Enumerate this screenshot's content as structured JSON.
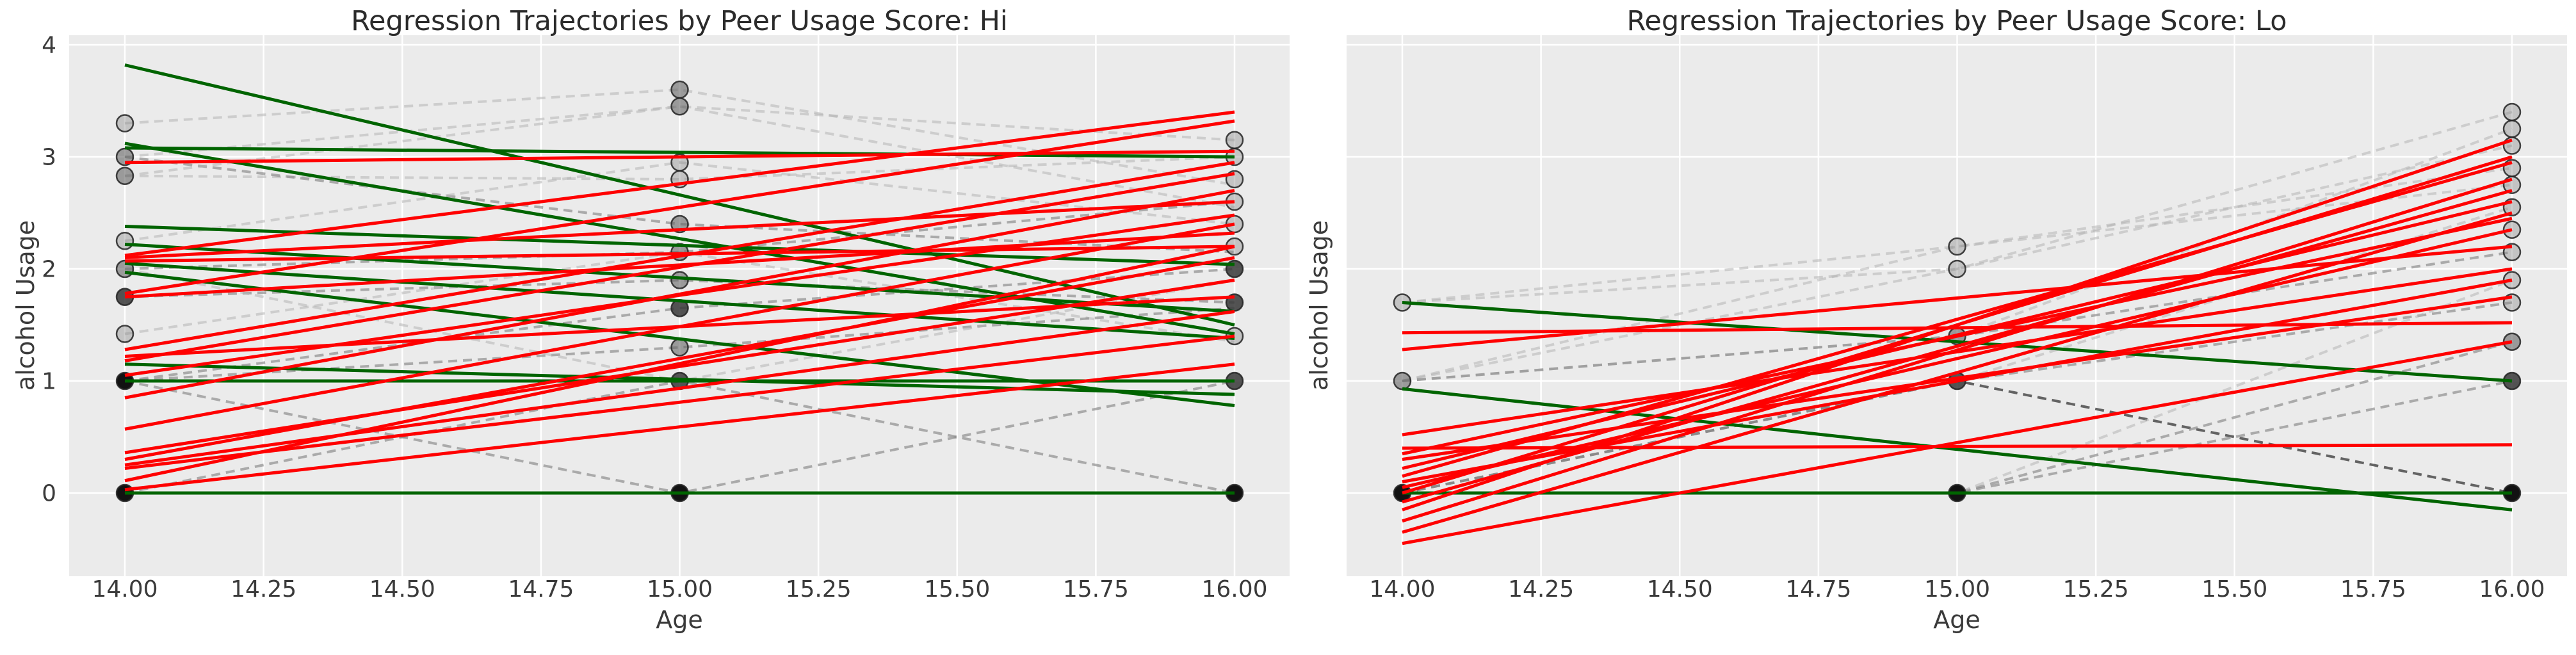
{
  "figure": {
    "background": "#ffffff"
  },
  "style": {
    "axes_background": "#ebebeb",
    "grid_color": "#ffffff",
    "tick_text_color": "#3a3a3a",
    "title_color": "#2b2b2b",
    "increase_line_color": "#ff0000",
    "decrease_line_color": "#006400",
    "marker_edge_color": "rgba(35,35,35,0.85)",
    "trajectory_shades": {
      "light": "rgba(180,180,180,0.55)",
      "medium": "rgba(135,135,135,0.65)",
      "dark": "rgba(75,75,75,0.85)"
    },
    "marker_shades": {
      "light": "rgba(135,135,135,0.40)",
      "medium": "rgba(100,100,100,0.60)",
      "dark": "rgba(55,55,55,0.85)",
      "black": "rgba(10,10,10,0.97)"
    }
  },
  "chart_data": [
    {
      "type": "line",
      "key": "hi",
      "title": "Regression Trajectories by Peer Usage Score: Hi",
      "xlabel": "Age",
      "ylabel": "alcohol Usage",
      "xlim": [
        13.9,
        16.1
      ],
      "ylim": [
        -0.74,
        4.09
      ],
      "x_tick_values": [
        14.0,
        14.25,
        14.5,
        14.75,
        15.0,
        15.25,
        15.5,
        15.75,
        16.0
      ],
      "x_ticks": [
        "14.00",
        "14.25",
        "14.50",
        "14.75",
        "15.00",
        "15.25",
        "15.50",
        "15.75",
        "16.00"
      ],
      "y_tick_values": [
        0,
        1,
        2,
        3,
        4
      ],
      "y_ticks": [
        "0",
        "1",
        "2",
        "3",
        "4"
      ],
      "show_y_tick_labels": true,
      "grid": true,
      "ages": [
        14,
        15,
        16
      ],
      "trajectories": [
        {
          "values": [
            3.3,
            3.6,
            2.75
          ],
          "shade": "light"
        },
        {
          "values": [
            3.0,
            3.45,
            3.15
          ],
          "shade": "light"
        },
        {
          "values": [
            2.83,
            2.8,
            3.0
          ],
          "shade": "light"
        },
        {
          "values": [
            3.0,
            2.4,
            2.15
          ],
          "shade": "medium"
        },
        {
          "values": [
            2.25,
            2.95,
            2.4
          ],
          "shade": "light"
        },
        {
          "values": [
            2.0,
            2.15,
            2.6
          ],
          "shade": "medium"
        },
        {
          "values": [
            1.75,
            1.9,
            1.7
          ],
          "shade": "medium"
        },
        {
          "values": [
            1.42,
            2.15,
            1.35
          ],
          "shade": "light"
        },
        {
          "values": [
            1.0,
            1.65,
            2.0
          ],
          "shade": "medium"
        },
        {
          "values": [
            1.0,
            1.3,
            1.65
          ],
          "shade": "medium"
        },
        {
          "values": [
            1.0,
            1.0,
            1.0
          ],
          "shade": "dark"
        },
        {
          "values": [
            0.0,
            0.0,
            0.0
          ],
          "shade": "dark"
        },
        {
          "values": [
            0.0,
            1.0,
            0.0
          ],
          "shade": "medium"
        },
        {
          "values": [
            1.0,
            0.0,
            1.0
          ],
          "shade": "medium"
        },
        {
          "values": [
            2.0,
            1.0,
            1.9
          ],
          "shade": "light"
        },
        {
          "values": [
            2.83,
            3.45,
            2.55
          ],
          "shade": "light"
        }
      ],
      "markers": [
        {
          "age": 14,
          "value": 3.3,
          "shade": "light"
        },
        {
          "age": 14,
          "value": 3.0,
          "shade": "medium"
        },
        {
          "age": 14,
          "value": 2.83,
          "shade": "medium"
        },
        {
          "age": 14,
          "value": 2.25,
          "shade": "light"
        },
        {
          "age": 14,
          "value": 2.0,
          "shade": "medium"
        },
        {
          "age": 14,
          "value": 1.75,
          "shade": "dark"
        },
        {
          "age": 14,
          "value": 1.42,
          "shade": "light"
        },
        {
          "age": 14,
          "value": 1.0,
          "shade": "black"
        },
        {
          "age": 14,
          "value": 0.0,
          "shade": "black"
        },
        {
          "age": 15,
          "value": 3.6,
          "shade": "medium"
        },
        {
          "age": 15,
          "value": 3.45,
          "shade": "medium"
        },
        {
          "age": 15,
          "value": 2.95,
          "shade": "light"
        },
        {
          "age": 15,
          "value": 2.8,
          "shade": "light"
        },
        {
          "age": 15,
          "value": 2.4,
          "shade": "medium"
        },
        {
          "age": 15,
          "value": 2.15,
          "shade": "medium"
        },
        {
          "age": 15,
          "value": 1.9,
          "shade": "medium"
        },
        {
          "age": 15,
          "value": 1.65,
          "shade": "dark"
        },
        {
          "age": 15,
          "value": 1.3,
          "shade": "medium"
        },
        {
          "age": 15,
          "value": 1.0,
          "shade": "dark"
        },
        {
          "age": 15,
          "value": 0.0,
          "shade": "black"
        },
        {
          "age": 16,
          "value": 3.15,
          "shade": "light"
        },
        {
          "age": 16,
          "value": 3.0,
          "shade": "light"
        },
        {
          "age": 16,
          "value": 2.8,
          "shade": "light"
        },
        {
          "age": 16,
          "value": 2.6,
          "shade": "light"
        },
        {
          "age": 16,
          "value": 2.4,
          "shade": "light"
        },
        {
          "age": 16,
          "value": 2.2,
          "shade": "light"
        },
        {
          "age": 16,
          "value": 2.0,
          "shade": "dark"
        },
        {
          "age": 16,
          "value": 1.7,
          "shade": "dark"
        },
        {
          "age": 16,
          "value": 1.4,
          "shade": "light"
        },
        {
          "age": 16,
          "value": 1.0,
          "shade": "dark"
        },
        {
          "age": 16,
          "value": 0.0,
          "shade": "black"
        }
      ],
      "regression_lines": [
        {
          "y_at_14": 3.82,
          "y_at_16": 1.5,
          "trend": "down"
        },
        {
          "y_at_14": 3.12,
          "y_at_16": 1.42,
          "trend": "down"
        },
        {
          "y_at_14": 3.08,
          "y_at_16": 3.0,
          "trend": "down"
        },
        {
          "y_at_14": 2.38,
          "y_at_16": 2.04,
          "trend": "down"
        },
        {
          "y_at_14": 2.22,
          "y_at_16": 1.62,
          "trend": "down"
        },
        {
          "y_at_14": 2.05,
          "y_at_16": 1.38,
          "trend": "down"
        },
        {
          "y_at_14": 1.97,
          "y_at_16": 0.78,
          "trend": "down"
        },
        {
          "y_at_14": 1.15,
          "y_at_16": 0.88,
          "trend": "down"
        },
        {
          "y_at_14": 1.0,
          "y_at_16": 1.0,
          "trend": "down"
        },
        {
          "y_at_14": 0.0,
          "y_at_16": 0.0,
          "trend": "down"
        },
        {
          "y_at_14": 2.95,
          "y_at_16": 3.05,
          "trend": "up"
        },
        {
          "y_at_14": 2.12,
          "y_at_16": 3.4,
          "trend": "up"
        },
        {
          "y_at_14": 2.1,
          "y_at_16": 2.6,
          "trend": "up"
        },
        {
          "y_at_14": 2.07,
          "y_at_16": 2.2,
          "trend": "up"
        },
        {
          "y_at_14": 1.78,
          "y_at_16": 3.32,
          "trend": "up"
        },
        {
          "y_at_14": 1.75,
          "y_at_16": 2.32,
          "trend": "up"
        },
        {
          "y_at_14": 1.28,
          "y_at_16": 2.95,
          "trend": "up"
        },
        {
          "y_at_14": 1.22,
          "y_at_16": 1.75,
          "trend": "up"
        },
        {
          "y_at_14": 1.18,
          "y_at_16": 2.85,
          "trend": "up"
        },
        {
          "y_at_14": 1.05,
          "y_at_16": 2.48,
          "trend": "up"
        },
        {
          "y_at_14": 0.85,
          "y_at_16": 2.7,
          "trend": "up"
        },
        {
          "y_at_14": 0.57,
          "y_at_16": 2.4,
          "trend": "up"
        },
        {
          "y_at_14": 0.36,
          "y_at_16": 1.9,
          "trend": "up"
        },
        {
          "y_at_14": 0.3,
          "y_at_16": 2.1,
          "trend": "up"
        },
        {
          "y_at_14": 0.25,
          "y_at_16": 1.62,
          "trend": "up"
        },
        {
          "y_at_14": 0.22,
          "y_at_16": 1.4,
          "trend": "up"
        },
        {
          "y_at_14": 0.11,
          "y_at_16": 2.2,
          "trend": "up"
        },
        {
          "y_at_14": 0.03,
          "y_at_16": 1.15,
          "trend": "up"
        }
      ]
    },
    {
      "type": "line",
      "key": "lo",
      "title": "Regression Trajectories by Peer Usage Score: Lo",
      "xlabel": "Age",
      "ylabel": "alcohol Usage",
      "xlim": [
        13.9,
        16.1
      ],
      "ylim": [
        -0.74,
        4.09
      ],
      "x_tick_values": [
        14.0,
        14.25,
        14.5,
        14.75,
        15.0,
        15.25,
        15.5,
        15.75,
        16.0
      ],
      "x_ticks": [
        "14.00",
        "14.25",
        "14.50",
        "14.75",
        "15.00",
        "15.25",
        "15.50",
        "15.75",
        "16.00"
      ],
      "y_tick_values": [
        0,
        1,
        2,
        3,
        4
      ],
      "y_ticks": [
        "0",
        "1",
        "2",
        "3",
        "4"
      ],
      "show_y_tick_labels": false,
      "grid": true,
      "ages": [
        14,
        15,
        16
      ],
      "trajectories": [
        {
          "values": [
            0.0,
            0.0,
            0.0
          ],
          "shade": "dark"
        },
        {
          "values": [
            0.0,
            1.0,
            0.0
          ],
          "shade": "dark"
        },
        {
          "values": [
            0.0,
            0.0,
            1.0
          ],
          "shade": "medium"
        },
        {
          "values": [
            0.0,
            0.0,
            1.35
          ],
          "shade": "medium"
        },
        {
          "values": [
            1.0,
            2.0,
            3.4
          ],
          "shade": "light"
        },
        {
          "values": [
            1.7,
            2.2,
            2.75
          ],
          "shade": "light"
        },
        {
          "values": [
            1.0,
            1.4,
            3.25
          ],
          "shade": "light"
        },
        {
          "values": [
            0.0,
            1.0,
            2.55
          ],
          "shade": "light"
        },
        {
          "values": [
            1.0,
            2.2,
            2.9
          ],
          "shade": "light"
        },
        {
          "values": [
            0.0,
            1.0,
            1.7
          ],
          "shade": "medium"
        },
        {
          "values": [
            1.7,
            2.0,
            3.1
          ],
          "shade": "light"
        },
        {
          "values": [
            0.0,
            0.0,
            1.9
          ],
          "shade": "light"
        },
        {
          "values": [
            1.0,
            1.4,
            2.15
          ],
          "shade": "medium"
        }
      ],
      "markers": [
        {
          "age": 14,
          "value": 1.7,
          "shade": "light"
        },
        {
          "age": 14,
          "value": 1.0,
          "shade": "medium"
        },
        {
          "age": 14,
          "value": 0.0,
          "shade": "black"
        },
        {
          "age": 15,
          "value": 2.2,
          "shade": "light"
        },
        {
          "age": 15,
          "value": 2.0,
          "shade": "light"
        },
        {
          "age": 15,
          "value": 1.4,
          "shade": "medium"
        },
        {
          "age": 15,
          "value": 1.0,
          "shade": "dark"
        },
        {
          "age": 15,
          "value": 0.0,
          "shade": "black"
        },
        {
          "age": 16,
          "value": 3.4,
          "shade": "light"
        },
        {
          "age": 16,
          "value": 3.25,
          "shade": "light"
        },
        {
          "age": 16,
          "value": 3.1,
          "shade": "light"
        },
        {
          "age": 16,
          "value": 2.9,
          "shade": "light"
        },
        {
          "age": 16,
          "value": 2.75,
          "shade": "light"
        },
        {
          "age": 16,
          "value": 2.55,
          "shade": "light"
        },
        {
          "age": 16,
          "value": 2.35,
          "shade": "light"
        },
        {
          "age": 16,
          "value": 2.15,
          "shade": "light"
        },
        {
          "age": 16,
          "value": 1.9,
          "shade": "light"
        },
        {
          "age": 16,
          "value": 1.7,
          "shade": "light"
        },
        {
          "age": 16,
          "value": 1.35,
          "shade": "medium"
        },
        {
          "age": 16,
          "value": 1.0,
          "shade": "dark"
        },
        {
          "age": 16,
          "value": 0.0,
          "shade": "black"
        }
      ],
      "regression_lines": [
        {
          "y_at_14": 1.7,
          "y_at_16": 1.0,
          "trend": "down"
        },
        {
          "y_at_14": 0.93,
          "y_at_16": -0.15,
          "trend": "down"
        },
        {
          "y_at_14": 0.0,
          "y_at_16": 0.0,
          "trend": "down"
        },
        {
          "y_at_14": 1.43,
          "y_at_16": 1.52,
          "trend": "up"
        },
        {
          "y_at_14": 1.28,
          "y_at_16": 2.2,
          "trend": "up"
        },
        {
          "y_at_14": 0.4,
          "y_at_16": 0.43,
          "trend": "up"
        },
        {
          "y_at_14": 0.52,
          "y_at_16": 2.0,
          "trend": "up"
        },
        {
          "y_at_14": 0.35,
          "y_at_16": 2.45,
          "trend": "up"
        },
        {
          "y_at_14": 0.3,
          "y_at_16": 1.75,
          "trend": "up"
        },
        {
          "y_at_14": 0.22,
          "y_at_16": 2.6,
          "trend": "up"
        },
        {
          "y_at_14": 0.15,
          "y_at_16": 2.95,
          "trend": "up"
        },
        {
          "y_at_14": 0.1,
          "y_at_16": 1.9,
          "trend": "up"
        },
        {
          "y_at_14": 0.05,
          "y_at_16": 2.35,
          "trend": "up"
        },
        {
          "y_at_14": 0.0,
          "y_at_16": 3.0,
          "trend": "up"
        },
        {
          "y_at_14": -0.08,
          "y_at_16": 2.7,
          "trend": "up"
        },
        {
          "y_at_14": -0.15,
          "y_at_16": 3.15,
          "trend": "up"
        },
        {
          "y_at_14": -0.25,
          "y_at_16": 2.8,
          "trend": "up"
        },
        {
          "y_at_14": -0.35,
          "y_at_16": 2.5,
          "trend": "up"
        },
        {
          "y_at_14": -0.45,
          "y_at_16": 1.35,
          "trend": "up"
        }
      ]
    }
  ]
}
